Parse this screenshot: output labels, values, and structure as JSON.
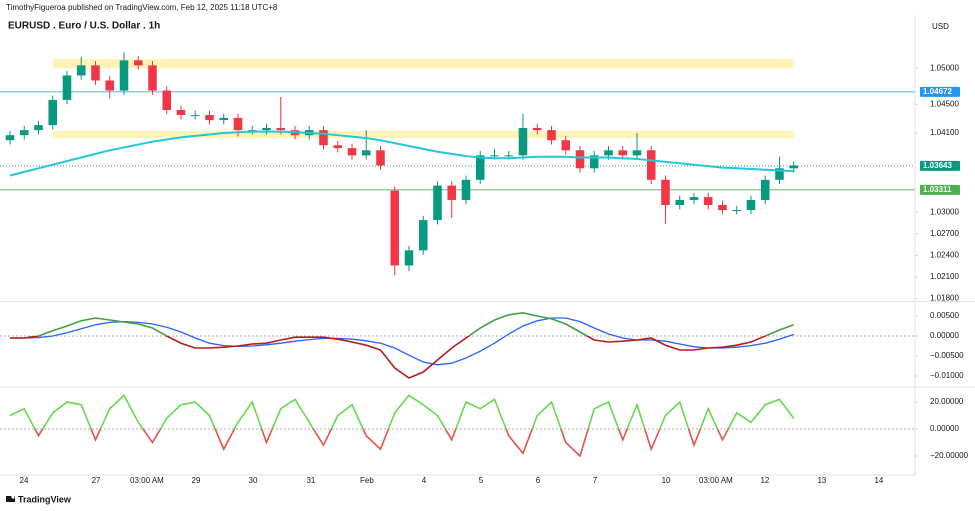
{
  "header": {
    "text": "TimothyFigueroa published on TradingView.com, Feb 12, 2025 11:18 UTC+8"
  },
  "footer": {
    "brand": "TradingView"
  },
  "chart_data": [
    {
      "type": "candlestick",
      "title": "EURUSD . Euro / U.S. Dollar . 1h",
      "currency": "USD",
      "up_color": "#089981",
      "down_color": "#f23645",
      "xlim": [
        -0.14,
        63.51
      ],
      "xticks": [
        {
          "value": 0.98,
          "label": "24"
        },
        {
          "value": 6.04,
          "label": "27"
        },
        {
          "value": 9.61,
          "label": "03:00 AM"
        },
        {
          "value": 13.05,
          "label": "29"
        },
        {
          "value": 17.05,
          "label": "30"
        },
        {
          "value": 21.12,
          "label": "31"
        },
        {
          "value": 25.05,
          "label": "Feb"
        },
        {
          "value": 29.05,
          "label": "4"
        },
        {
          "value": 33.05,
          "label": "5"
        },
        {
          "value": 37.05,
          "label": "6"
        },
        {
          "value": 41.05,
          "label": "7"
        },
        {
          "value": 46.04,
          "label": "10"
        },
        {
          "value": 49.54,
          "label": "03:00 AM"
        },
        {
          "value": 52.98,
          "label": "12"
        },
        {
          "value": 56.98,
          "label": "13"
        },
        {
          "value": 60.98,
          "label": "14"
        }
      ],
      "ylim": [
        1.0178,
        1.0574
      ],
      "yticks": [
        {
          "value": 1.05,
          "label": "1.05000"
        },
        {
          "value": 1.045,
          "label": "1.04500"
        },
        {
          "value": 1.041,
          "label": "1.04100"
        },
        {
          "value": 1.03,
          "label": "1.03000"
        },
        {
          "value": 1.027,
          "label": "1.02700"
        },
        {
          "value": 1.024,
          "label": "1.02400"
        },
        {
          "value": 1.021,
          "label": "1.02100"
        },
        {
          "value": 1.018,
          "label": "1.01800"
        }
      ],
      "zones": [
        {
          "color": "#fff3b8",
          "range": [
            1.05,
            1.0513
          ]
        },
        {
          "color": "#fff3b8",
          "range": [
            1.0403,
            1.0413
          ]
        }
      ],
      "levels": [
        {
          "value": 1.04672,
          "label": "1.04672",
          "color": "#2196f3",
          "dashed": false
        },
        {
          "value": 1.03643,
          "label": "1.03643",
          "color": "#089981",
          "dashed": true
        },
        {
          "value": 1.03311,
          "label": "1.03311",
          "color": "#4caf50",
          "dashed": false
        }
      ],
      "open": [
        1.04,
        1.0407,
        1.0414,
        1.0421,
        1.0456,
        1.049,
        1.0504,
        1.0483,
        1.0469,
        1.0511,
        1.0504,
        1.0469,
        1.0442,
        1.0435,
        1.0435,
        1.0428,
        1.0431,
        1.0414,
        1.0414,
        1.0417,
        1.0414,
        1.0407,
        1.0414,
        1.0393,
        1.0389,
        1.0379,
        1.0386,
        1.033,
        1.0226,
        1.0247,
        1.0289,
        1.0337,
        1.0317,
        1.0345,
        1.0379,
        1.0379,
        1.0379,
        1.0417,
        1.0414,
        1.04,
        1.0386,
        1.0361,
        1.0379,
        1.0386,
        1.0379,
        1.0386,
        1.0345,
        1.031,
        1.0317,
        1.0321,
        1.031,
        1.0303,
        1.0303,
        1.0317,
        1.0345,
        1.0361
      ],
      "high": [
        1.0413,
        1.042,
        1.0427,
        1.0462,
        1.0496,
        1.0516,
        1.051,
        1.0489,
        1.0522,
        1.0517,
        1.051,
        1.0475,
        1.0448,
        1.0441,
        1.0441,
        1.0437,
        1.0437,
        1.042,
        1.0423,
        1.046,
        1.042,
        1.042,
        1.042,
        1.0399,
        1.0395,
        1.0414,
        1.0392,
        1.0336,
        1.0253,
        1.0295,
        1.0343,
        1.0343,
        1.0351,
        1.0385,
        1.0388,
        1.0385,
        1.0437,
        1.0423,
        1.042,
        1.0406,
        1.0392,
        1.0385,
        1.0392,
        1.0392,
        1.041,
        1.0392,
        1.0351,
        1.0323,
        1.0327,
        1.0327,
        1.0316,
        1.0309,
        1.0323,
        1.0351,
        1.0377,
        1.0371
      ],
      "low": [
        1.0394,
        1.0401,
        1.0408,
        1.0415,
        1.045,
        1.0484,
        1.0477,
        1.0458,
        1.0463,
        1.0498,
        1.0463,
        1.0436,
        1.0429,
        1.0429,
        1.0422,
        1.0422,
        1.0405,
        1.0408,
        1.0408,
        1.0408,
        1.0401,
        1.0401,
        1.0387,
        1.0383,
        1.0373,
        1.0373,
        1.0359,
        1.0212,
        1.0218,
        1.0241,
        1.0283,
        1.0292,
        1.0311,
        1.0339,
        1.0373,
        1.0373,
        1.0373,
        1.0408,
        1.0394,
        1.038,
        1.0355,
        1.0355,
        1.0373,
        1.0373,
        1.0373,
        1.0339,
        1.0284,
        1.0304,
        1.0311,
        1.0304,
        1.0297,
        1.0297,
        1.0297,
        1.0311,
        1.0339,
        1.0355
      ],
      "close": [
        1.0407,
        1.0414,
        1.0421,
        1.0456,
        1.049,
        1.0504,
        1.0483,
        1.0469,
        1.0511,
        1.0504,
        1.0469,
        1.0442,
        1.0435,
        1.0435,
        1.0428,
        1.0431,
        1.0414,
        1.0414,
        1.0417,
        1.0414,
        1.0407,
        1.0414,
        1.0393,
        1.0389,
        1.0379,
        1.0386,
        1.0365,
        1.0226,
        1.0247,
        1.0289,
        1.0337,
        1.0317,
        1.0345,
        1.0379,
        1.0379,
        1.0379,
        1.0417,
        1.0414,
        1.04,
        1.0386,
        1.0361,
        1.0379,
        1.0386,
        1.0379,
        1.0386,
        1.0345,
        1.031,
        1.0317,
        1.0321,
        1.031,
        1.0303,
        1.0303,
        1.0317,
        1.0345,
        1.0361,
        1.0365
      ],
      "series": [
        {
          "color": "#26c6da",
          "values": [
            1.0351,
            1.0356,
            1.0361,
            1.0366,
            1.0371,
            1.0376,
            1.0381,
            1.0386,
            1.039,
            1.0394,
            1.0398,
            1.0401,
            1.0404,
            1.0406,
            1.0408,
            1.041,
            1.0411,
            1.0412,
            1.0412,
            1.0412,
            1.0411,
            1.041,
            1.0409,
            1.0407,
            1.0405,
            1.0403,
            1.04,
            1.0396,
            1.0392,
            1.0388,
            1.0384,
            1.0381,
            1.0378,
            1.0376,
            1.0375,
            1.0375,
            1.0376,
            1.0377,
            1.0377,
            1.0377,
            1.0376,
            1.0376,
            1.0376,
            1.0375,
            1.0374,
            1.0372,
            1.037,
            1.0368,
            1.0366,
            1.0364,
            1.0362,
            1.0361,
            1.036,
            1.0359,
            1.0358,
            1.0357
          ]
        }
      ]
    },
    {
      "type": "line",
      "ylim": [
        -0.0125,
        0.00825
      ],
      "yticks": [
        {
          "value": 0.005,
          "label": "0.00500"
        },
        {
          "value": 0,
          "label": "0.00000"
        },
        {
          "value": -0.005,
          "label": "−0.00500"
        },
        {
          "value": -0.01,
          "label": "−0.01000"
        }
      ],
      "series": [
        {
          "color": "#2962ff",
          "values": [
            -0.0005,
            -0.0005,
            -0.0004,
            0,
            0.0008,
            0.0018,
            0.0028,
            0.0034,
            0.0036,
            0.0034,
            0.003,
            0.0022,
            0.001,
            -0.0005,
            -0.0018,
            -0.0024,
            -0.0026,
            -0.0025,
            -0.0022,
            -0.0018,
            -0.0013,
            -0.0009,
            -0.0006,
            -0.0006,
            -0.0008,
            -0.0012,
            -0.0018,
            -0.003,
            -0.0048,
            -0.0065,
            -0.0072,
            -0.0068,
            -0.0055,
            -0.0038,
            -0.0018,
            0.0005,
            0.0025,
            0.0038,
            0.0045,
            0.0045,
            0.0036,
            0.002,
            0.0005,
            -0.0005,
            -0.001,
            -0.001,
            -0.0013,
            -0.002,
            -0.0027,
            -0.003,
            -0.003,
            -0.0028,
            -0.0024,
            -0.0018,
            -0.0008,
            0.0004
          ]
        },
        {
          "color": "#43a047",
          "negative_color": "#b71c1c",
          "values": [
            -0.0005,
            -0.0005,
            0,
            0.0013,
            0.0025,
            0.0038,
            0.0045,
            0.004,
            0.0035,
            0.003,
            0.002,
            0,
            -0.0018,
            -0.003,
            -0.003,
            -0.0028,
            -0.0025,
            -0.002,
            -0.0018,
            -0.001,
            -0.0003,
            -0.0003,
            -0.0003,
            -0.0008,
            -0.0015,
            -0.0023,
            -0.0035,
            -0.008,
            -0.0105,
            -0.009,
            -0.006,
            -0.003,
            -0.0005,
            0.002,
            0.004,
            0.0053,
            0.0058,
            0.005,
            0.0043,
            0.003,
            0.001,
            -0.001,
            -0.0015,
            -0.0013,
            -0.001,
            -0.0005,
            -0.0023,
            -0.0035,
            -0.0035,
            -0.003,
            -0.0028,
            -0.0023,
            -0.0015,
            0,
            0.0015,
            0.0028
          ]
        }
      ]
    },
    {
      "type": "line",
      "ylim": [
        -34.1,
        30.4
      ],
      "yticks": [
        {
          "value": 20,
          "label": "20.00000"
        },
        {
          "value": 0,
          "label": "0.00000"
        },
        {
          "value": -20,
          "label": "−20.00000"
        }
      ],
      "series": [
        {
          "color": "#66d94c",
          "negative_color": "#e5534b",
          "values": [
            10,
            15,
            -5,
            12,
            20,
            18,
            -8,
            15,
            25,
            5,
            -10,
            8,
            18,
            20,
            10,
            -15,
            5,
            20,
            -10,
            15,
            22,
            5,
            -12,
            10,
            18,
            -5,
            -15,
            12,
            25,
            18,
            10,
            -8,
            20,
            15,
            22,
            -5,
            -18,
            10,
            20,
            -10,
            -20,
            15,
            20,
            -8,
            18,
            -15,
            10,
            20,
            -12,
            15,
            -8,
            12,
            5,
            18,
            22,
            8
          ]
        }
      ]
    }
  ]
}
